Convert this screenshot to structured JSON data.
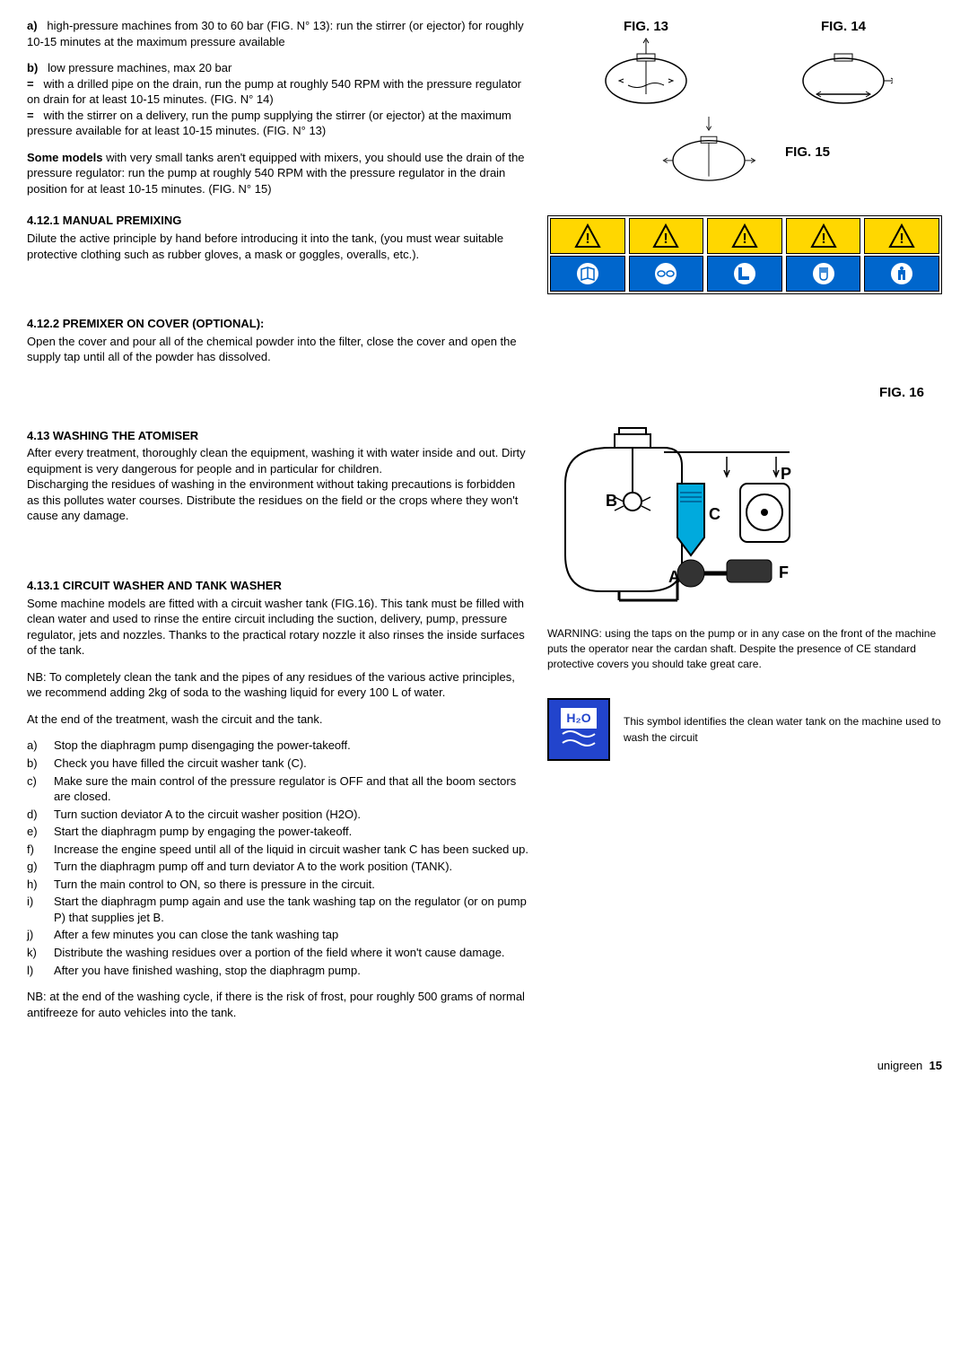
{
  "a_label": "a)",
  "a_text": "high-pressure machines from 30 to 60 bar (FIG. N° 13): run the stirrer (or ejector) for roughly 10-15 minutes at the maximum pressure available",
  "b_label": "b)",
  "b_text": "low pressure machines, max 20 bar",
  "b_eq1_marker": "=",
  "b_eq1": "with a drilled pipe on the drain, run the pump at roughly 540 RPM with the pressure regulator on drain for at least 10-15 minutes. (FIG. N° 14)",
  "b_eq2_marker": "=",
  "b_eq2": "with the stirrer on a delivery, run the pump supplying the stirrer (or ejector) at the maximum pressure available for at least 10-15 minutes. (FIG. N° 13)",
  "some_models_bold": "Some models",
  "some_models": " with very small tanks aren't equipped with mixers, you should use the drain of the pressure regulator: run the pump at roughly 540 RPM with the pressure regulator in the drain position for at least 10-15 minutes. (FIG. N° 15)",
  "s4121_title": "4.12.1 MANUAL PREMIXING",
  "s4121_text": "Dilute the active principle by hand before introducing it into the tank, (you must wear suitable protective clothing such as rubber gloves, a mask or goggles, overalls, etc.).",
  "s4122_title": "4.12.2 PREMIXER ON COVER (OPTIONAL):",
  "s4122_text": "Open the cover and pour all of the chemical powder into the filter, close the cover and open the supply tap until all of the powder has dissolved.",
  "s413_title": "4.13   WASHING THE ATOMISER",
  "s413_p1": "After every treatment, thoroughly clean the equipment, washing it with water inside and out. Dirty equipment is very dangerous for people and in particular for children.",
  "s413_p2": "Discharging the residues of washing in the environment without taking precautions is forbidden as this pollutes water courses. Distribute the residues on the field or the crops where they won't cause any damage.",
  "s4131_title": "4.13.1 CIRCUIT WASHER AND TANK WASHER",
  "s4131_p1": "Some machine models are fitted with a circuit washer tank (FIG.16). This tank must be filled with clean water and used to rinse the entire circuit including the suction, delivery, pump, pressure regulator, jets and nozzles. Thanks to the practical rotary nozzle it also rinses the inside surfaces of the tank.",
  "s4131_nb1": "NB: To completely clean the tank and the pipes of any residues of the various active principles, we recommend adding 2kg of soda to the washing liquid for every 100 L of water.",
  "s4131_p2": "At the end of the treatment, wash the circuit and the tank.",
  "steps": [
    {
      "m": "a)",
      "t": "Stop the diaphragm pump disengaging the power-takeoff."
    },
    {
      "m": "b)",
      "t": "Check you have filled the circuit washer tank (C)."
    },
    {
      "m": "c)",
      "t": "Make sure the main control of the pressure regulator is OFF and that all the boom sectors are closed."
    },
    {
      "m": "d)",
      "t": "Turn suction deviator A to the circuit washer position (H2O)."
    },
    {
      "m": "e)",
      "t": "Start the diaphragm pump by engaging the power-takeoff."
    },
    {
      "m": "f)",
      "t": "Increase the engine speed until all of the liquid in circuit washer tank C has been sucked up."
    },
    {
      "m": "g)",
      "t": "Turn the diaphragm pump off and turn deviator A to the work position (TANK)."
    },
    {
      "m": "h)",
      "t": "Turn the main control to ON, so there is pressure in the circuit."
    },
    {
      "m": "i)",
      "t": "Start the diaphragm pump again and use the tank washing tap on the regulator (or on pump P) that supplies jet B."
    },
    {
      "m": "j)",
      "t": "After a few minutes you can close the tank washing tap"
    },
    {
      "m": "k)",
      "t": "Distribute the washing residues over a portion of the field where it won't cause damage."
    },
    {
      "m": "l)",
      "t": "After you have finished washing, stop the diaphragm pump."
    }
  ],
  "nb_end": "NB: at the end of the washing cycle, if there is the risk of frost, pour roughly 500 grams of normal antifreeze for auto vehicles into the tank.",
  "fig13": "FIG. 13",
  "fig14": "FIG. 14",
  "fig15": "FIG. 15",
  "fig16": "FIG. 16",
  "warning_text": "WARNING: using the taps on the pump or in any case on the front of the machine puts the operator near the cardan shaft. Despite the presence of CE standard protective covers you should take great care.",
  "h2o_label": "H₂O",
  "h2o_text": "This symbol identifies the clean water tank on the machine used to wash the circuit",
  "labels": {
    "B": "B",
    "C": "C",
    "P": "P",
    "A": "A",
    "F": "F"
  },
  "footer_brand": "unigreen",
  "footer_page": "15",
  "safety_colors": {
    "blue": "#0066cc",
    "yellow": "#ffd700"
  }
}
